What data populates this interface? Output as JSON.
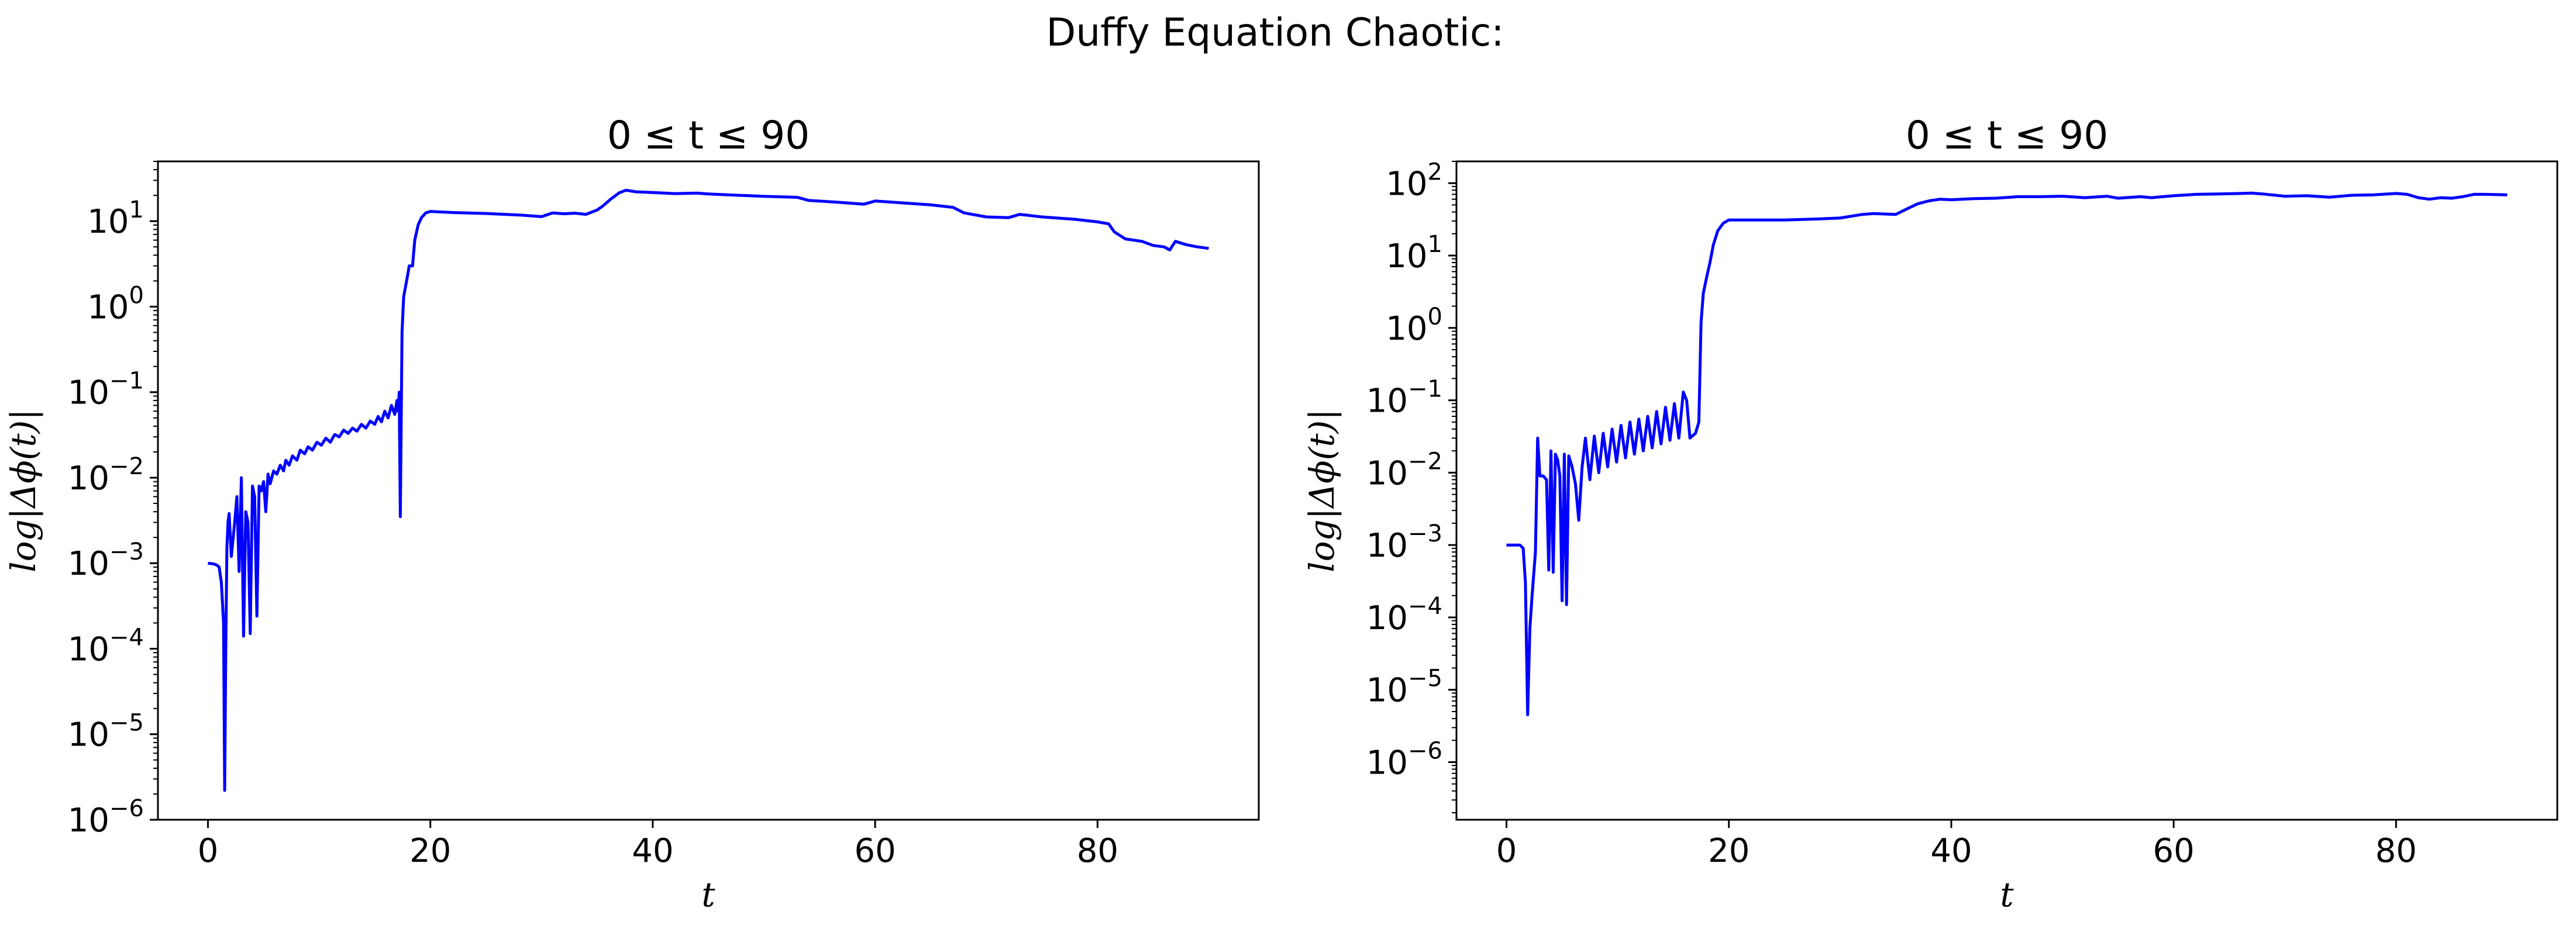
{
  "figure": {
    "suptitle": "Duffy Equation Chaotic:"
  },
  "chart_data": [
    {
      "type": "line",
      "title": "0 ≤ t ≤ 90",
      "xlabel": "t",
      "ylabel": "log|Δϕ(t)|",
      "yscale": "log",
      "xlim": [
        -4.5,
        94.5
      ],
      "ylim": [
        1e-06,
        50
      ],
      "xticks": [
        0,
        20,
        40,
        60,
        80
      ],
      "yticks_exp": [
        -6,
        -5,
        -4,
        -3,
        -2,
        -1,
        0,
        1
      ],
      "grid": false,
      "line_color": "#0000ff",
      "points": [
        [
          0,
          0.001
        ],
        [
          0.5,
          0.00098
        ],
        [
          0.8,
          0.00095
        ],
        [
          1.0,
          0.0009
        ],
        [
          1.2,
          0.0006
        ],
        [
          1.4,
          0.0002
        ],
        [
          1.5,
          2.2e-06
        ],
        [
          1.6,
          0.0001
        ],
        [
          1.7,
          0.0015
        ],
        [
          1.8,
          0.003
        ],
        [
          1.9,
          0.0038
        ],
        [
          2.1,
          0.0012
        ],
        [
          2.4,
          0.003
        ],
        [
          2.6,
          0.006
        ],
        [
          2.8,
          0.0008
        ],
        [
          3.0,
          0.01
        ],
        [
          3.2,
          0.00014
        ],
        [
          3.4,
          0.004
        ],
        [
          3.6,
          0.003
        ],
        [
          3.8,
          0.00015
        ],
        [
          4.0,
          0.008
        ],
        [
          4.2,
          0.006
        ],
        [
          4.4,
          0.00024
        ],
        [
          4.6,
          0.008
        ],
        [
          4.8,
          0.007
        ],
        [
          5.0,
          0.009
        ],
        [
          5.2,
          0.004
        ],
        [
          5.4,
          0.011
        ],
        [
          5.6,
          0.0085
        ],
        [
          5.9,
          0.012
        ],
        [
          6.2,
          0.011
        ],
        [
          6.5,
          0.014
        ],
        [
          6.8,
          0.012
        ],
        [
          7.0,
          0.016
        ],
        [
          7.3,
          0.014
        ],
        [
          7.6,
          0.018
        ],
        [
          8.0,
          0.016
        ],
        [
          8.3,
          0.021
        ],
        [
          8.7,
          0.019
        ],
        [
          9.0,
          0.023
        ],
        [
          9.4,
          0.021
        ],
        [
          9.8,
          0.026
        ],
        [
          10.2,
          0.024
        ],
        [
          10.6,
          0.029
        ],
        [
          11.0,
          0.026
        ],
        [
          11.4,
          0.032
        ],
        [
          11.8,
          0.03
        ],
        [
          12.2,
          0.036
        ],
        [
          12.6,
          0.033
        ],
        [
          13.0,
          0.038
        ],
        [
          13.4,
          0.035
        ],
        [
          13.8,
          0.042
        ],
        [
          14.2,
          0.038
        ],
        [
          14.6,
          0.046
        ],
        [
          15.0,
          0.042
        ],
        [
          15.3,
          0.052
        ],
        [
          15.6,
          0.045
        ],
        [
          15.9,
          0.06
        ],
        [
          16.2,
          0.05
        ],
        [
          16.5,
          0.07
        ],
        [
          16.8,
          0.055
        ],
        [
          17.0,
          0.08
        ],
        [
          17.1,
          0.06
        ],
        [
          17.2,
          0.1
        ],
        [
          17.3,
          0.0035
        ],
        [
          17.45,
          0.5
        ],
        [
          17.6,
          1.3
        ],
        [
          17.8,
          1.8
        ],
        [
          18.0,
          2.5
        ],
        [
          18.1,
          3.0
        ],
        [
          18.4,
          3.0
        ],
        [
          18.6,
          6.0
        ],
        [
          18.9,
          9.0
        ],
        [
          19.2,
          11
        ],
        [
          19.6,
          12.5
        ],
        [
          20.0,
          13
        ],
        [
          22,
          12.6
        ],
        [
          25,
          12.3
        ],
        [
          28,
          11.8
        ],
        [
          30,
          11.3
        ],
        [
          31,
          12.5
        ],
        [
          32,
          12.2
        ],
        [
          33,
          12.4
        ],
        [
          34,
          12.0
        ],
        [
          35,
          13.5
        ],
        [
          35.5,
          15
        ],
        [
          36.2,
          18
        ],
        [
          37,
          21.5
        ],
        [
          37.6,
          23
        ],
        [
          38.5,
          22
        ],
        [
          40,
          21.6
        ],
        [
          42,
          21
        ],
        [
          44,
          21.3
        ],
        [
          45,
          20.8
        ],
        [
          48,
          20
        ],
        [
          50,
          19.5
        ],
        [
          53,
          19
        ],
        [
          54,
          17.5
        ],
        [
          57,
          16.5
        ],
        [
          59,
          15.8
        ],
        [
          60,
          17.2
        ],
        [
          62,
          16.5
        ],
        [
          65,
          15.5
        ],
        [
          67,
          14.5
        ],
        [
          68,
          12.5
        ],
        [
          70,
          11.2
        ],
        [
          72,
          11
        ],
        [
          73,
          12
        ],
        [
          75,
          11.2
        ],
        [
          78,
          10.5
        ],
        [
          80,
          9.8
        ],
        [
          81,
          9.3
        ],
        [
          81.5,
          7.5
        ],
        [
          82.5,
          6.2
        ],
        [
          84,
          5.8
        ],
        [
          85,
          5.2
        ],
        [
          86,
          5.0
        ],
        [
          86.5,
          4.6
        ],
        [
          87,
          5.8
        ],
        [
          88,
          5.3
        ],
        [
          89,
          5.0
        ],
        [
          90,
          4.8
        ]
      ]
    },
    {
      "type": "line",
      "title": "0 ≤ t ≤ 90",
      "xlabel": "t",
      "ylabel": "log|Δϕ(t)|",
      "yscale": "log",
      "xlim": [
        -4.5,
        94.5
      ],
      "ylim": [
        1.6e-07,
        200
      ],
      "xticks": [
        0,
        20,
        40,
        60,
        80
      ],
      "yticks_exp": [
        -6,
        -5,
        -4,
        -3,
        -2,
        -1,
        0,
        1,
        2
      ],
      "grid": false,
      "line_color": "#0000ff",
      "points": [
        [
          0,
          0.001
        ],
        [
          0.6,
          0.001
        ],
        [
          1.2,
          0.001
        ],
        [
          1.5,
          0.0009
        ],
        [
          1.7,
          0.0003
        ],
        [
          1.9,
          4.5e-06
        ],
        [
          2.1,
          7e-05
        ],
        [
          2.3,
          0.0002
        ],
        [
          2.6,
          0.0008
        ],
        [
          2.8,
          0.03
        ],
        [
          3.0,
          0.009
        ],
        [
          3.3,
          0.009
        ],
        [
          3.6,
          0.008
        ],
        [
          3.8,
          0.00045
        ],
        [
          4.0,
          0.02
        ],
        [
          4.2,
          0.00042
        ],
        [
          4.4,
          0.018
        ],
        [
          4.6,
          0.015
        ],
        [
          4.8,
          0.009
        ],
        [
          5.0,
          0.00017
        ],
        [
          5.2,
          0.018
        ],
        [
          5.4,
          0.00015
        ],
        [
          5.6,
          0.017
        ],
        [
          5.9,
          0.012
        ],
        [
          6.2,
          0.007
        ],
        [
          6.5,
          0.0022
        ],
        [
          6.8,
          0.012
        ],
        [
          7.1,
          0.03
        ],
        [
          7.5,
          0.008
        ],
        [
          7.9,
          0.032
        ],
        [
          8.3,
          0.01
        ],
        [
          8.7,
          0.035
        ],
        [
          9.1,
          0.012
        ],
        [
          9.5,
          0.04
        ],
        [
          9.9,
          0.014
        ],
        [
          10.3,
          0.045
        ],
        [
          10.7,
          0.016
        ],
        [
          11.1,
          0.05
        ],
        [
          11.5,
          0.018
        ],
        [
          11.9,
          0.055
        ],
        [
          12.3,
          0.02
        ],
        [
          12.7,
          0.06
        ],
        [
          13.1,
          0.022
        ],
        [
          13.5,
          0.07
        ],
        [
          13.9,
          0.025
        ],
        [
          14.3,
          0.08
        ],
        [
          14.7,
          0.028
        ],
        [
          15.1,
          0.09
        ],
        [
          15.5,
          0.03
        ],
        [
          15.9,
          0.13
        ],
        [
          16.2,
          0.1
        ],
        [
          16.5,
          0.03
        ],
        [
          17.0,
          0.035
        ],
        [
          17.3,
          0.05
        ],
        [
          17.5,
          1.2
        ],
        [
          17.7,
          3.0
        ],
        [
          18.0,
          5.0
        ],
        [
          18.3,
          8.0
        ],
        [
          18.6,
          14
        ],
        [
          19.0,
          22
        ],
        [
          19.5,
          28
        ],
        [
          20,
          31
        ],
        [
          22,
          31
        ],
        [
          25,
          31
        ],
        [
          28,
          32
        ],
        [
          30,
          33
        ],
        [
          32,
          37
        ],
        [
          33,
          38
        ],
        [
          35,
          37
        ],
        [
          36,
          44
        ],
        [
          37,
          52
        ],
        [
          38,
          57
        ],
        [
          39,
          60
        ],
        [
          40,
          59
        ],
        [
          42,
          61
        ],
        [
          44,
          62
        ],
        [
          46,
          65
        ],
        [
          48,
          65
        ],
        [
          50,
          66
        ],
        [
          52,
          63
        ],
        [
          54,
          66
        ],
        [
          55,
          62
        ],
        [
          57,
          65
        ],
        [
          58,
          63
        ],
        [
          60,
          67
        ],
        [
          62,
          70
        ],
        [
          64,
          71
        ],
        [
          66,
          72
        ],
        [
          67,
          73
        ],
        [
          68,
          71
        ],
        [
          70,
          66
        ],
        [
          72,
          67
        ],
        [
          74,
          64
        ],
        [
          75,
          66
        ],
        [
          76,
          68
        ],
        [
          78,
          69
        ],
        [
          80,
          72
        ],
        [
          81,
          70
        ],
        [
          82,
          63
        ],
        [
          83,
          60
        ],
        [
          84,
          63
        ],
        [
          85,
          62
        ],
        [
          86,
          65
        ],
        [
          87,
          70
        ],
        [
          88,
          70
        ],
        [
          90,
          69
        ]
      ]
    }
  ]
}
